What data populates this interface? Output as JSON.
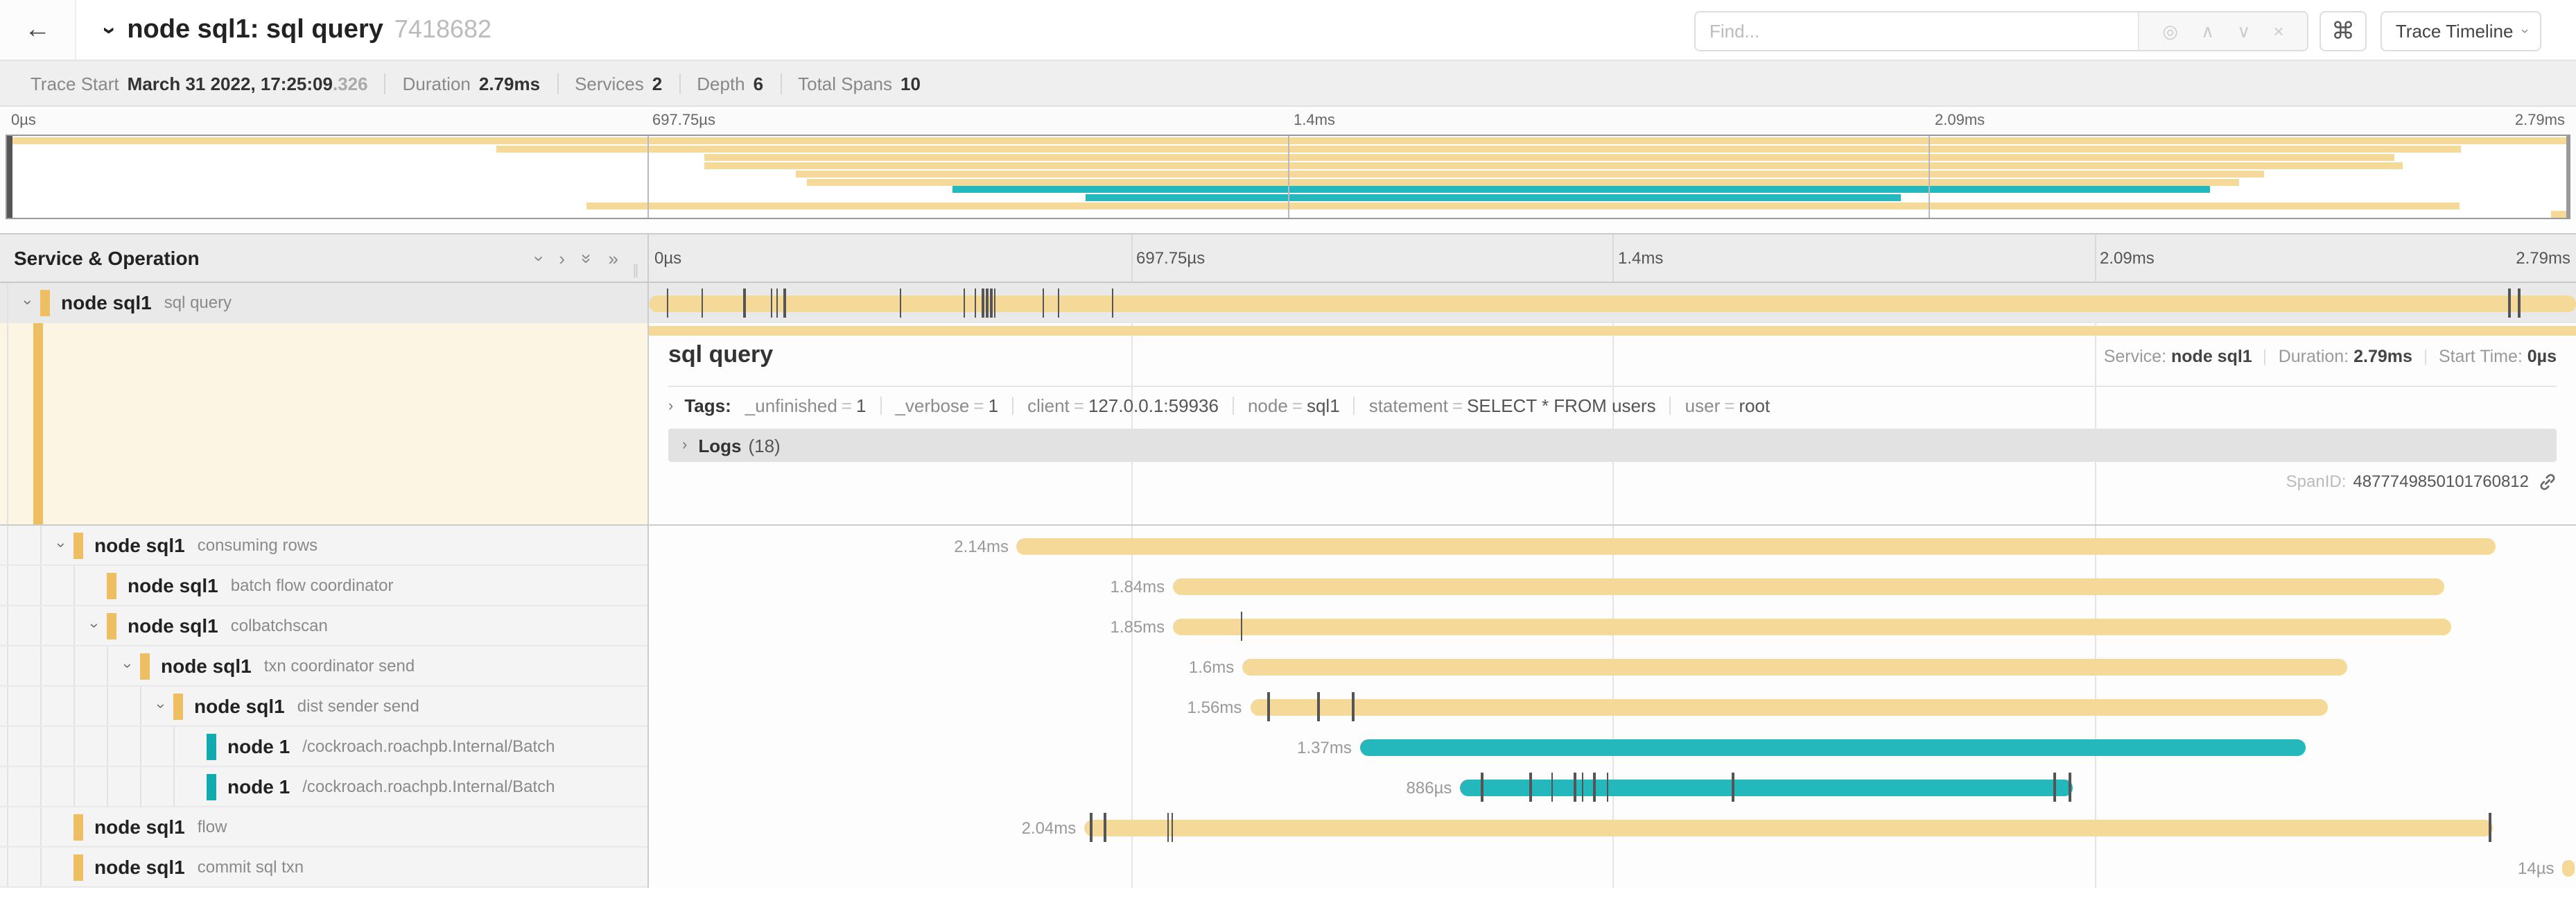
{
  "header": {
    "back_icon": "back-arrow",
    "title": "node sql1: sql query",
    "trace_id_short": "7418682",
    "find_placeholder": "Find...",
    "shortcut_icon": "⌘",
    "view_selector": "Trace Timeline"
  },
  "trace_info": {
    "items": [
      {
        "label": "Trace Start",
        "value": "March 31 2022, 17:25:09",
        "suffix": ".326"
      },
      {
        "label": "Duration",
        "value": "2.79ms"
      },
      {
        "label": "Services",
        "value": "2"
      },
      {
        "label": "Depth",
        "value": "6"
      },
      {
        "label": "Total Spans",
        "value": "10"
      }
    ]
  },
  "timeline": {
    "ticks": [
      {
        "label": "0µs",
        "pos": 0
      },
      {
        "label": "697.75µs",
        "pos": 25
      },
      {
        "label": "1.4ms",
        "pos": 50
      },
      {
        "label": "2.09ms",
        "pos": 75
      },
      {
        "label": "2.79ms",
        "pos": 100
      }
    ]
  },
  "colors": {
    "tan": "#F5D999",
    "tan_chip": "#EDBE62",
    "teal": "#24B8BD",
    "teal_chip": "#12A9AF",
    "selected_row": "#e9e9e9",
    "detail_tint": "#fcf5e4"
  },
  "panel": {
    "left_header": "Service & Operation"
  },
  "spans": {
    "rows": [
      {
        "service": "node sql1",
        "operation": "sql query",
        "depth": 0,
        "expandable": true,
        "color": "tan",
        "start": 0,
        "end": 100,
        "duration_label": "",
        "ticks": [
          0.9,
          2.7,
          4.9,
          6.3,
          6.6,
          7.0,
          13.0,
          16.3,
          16.9,
          17.3,
          17.5,
          17.7,
          17.9,
          20.4,
          21.2,
          24.0,
          96.5,
          97.0
        ]
      },
      {
        "service": "node sql1",
        "operation": "consuming rows",
        "depth": 1,
        "expandable": true,
        "color": "tan",
        "start": 19.1,
        "end": 95.8,
        "duration_label": "2.14ms",
        "ticks": []
      },
      {
        "service": "node sql1",
        "operation": "batch flow coordinator",
        "depth": 2,
        "expandable": false,
        "color": "tan",
        "start": 27.2,
        "end": 93.2,
        "duration_label": "1.84ms",
        "ticks": []
      },
      {
        "service": "node sql1",
        "operation": "colbatchscan",
        "depth": 2,
        "expandable": true,
        "color": "tan",
        "start": 27.2,
        "end": 93.5,
        "duration_label": "1.85ms",
        "ticks": [
          30.7
        ]
      },
      {
        "service": "node sql1",
        "operation": "txn coordinator send",
        "depth": 3,
        "expandable": true,
        "color": "tan",
        "start": 30.8,
        "end": 88.1,
        "duration_label": "1.6ms",
        "ticks": []
      },
      {
        "service": "node sql1",
        "operation": "dist sender send",
        "depth": 4,
        "expandable": true,
        "color": "tan",
        "start": 31.2,
        "end": 87.1,
        "duration_label": "1.56ms",
        "ticks": [
          32.1,
          34.7,
          36.5
        ]
      },
      {
        "service": "node 1",
        "operation": "/cockroach.roachpb.Internal/Batch",
        "depth": 5,
        "expandable": false,
        "color": "teal",
        "start": 36.9,
        "end": 86.0,
        "duration_label": "1.37ms",
        "ticks": []
      },
      {
        "service": "node 1",
        "operation": "/cockroach.roachpb.Internal/Batch",
        "depth": 5,
        "expandable": false,
        "color": "teal",
        "start": 42.1,
        "end": 73.9,
        "duration_label": "886µs",
        "ticks": [
          43.2,
          45.7,
          46.8,
          48.0,
          48.4,
          49.0,
          49.7,
          56.2,
          72.9,
          73.7
        ]
      },
      {
        "service": "node sql1",
        "operation": "flow",
        "depth": 1,
        "expandable": false,
        "color": "tan",
        "start": 22.6,
        "end": 95.7,
        "duration_label": "2.04ms",
        "ticks": [
          22.9,
          23.6,
          26.9,
          27.1,
          95.5
        ]
      },
      {
        "service": "node sql1",
        "operation": "commit sql txn",
        "depth": 1,
        "expandable": false,
        "color": "tan",
        "start": 99.3,
        "end": 99.9,
        "duration_label": "14µs",
        "ticks": []
      }
    ]
  },
  "detail": {
    "title": "sql query",
    "service_label": "Service:",
    "service": "node sql1",
    "duration_label": "Duration:",
    "duration": "2.79ms",
    "start_label": "Start Time:",
    "start": "0µs",
    "tags_label": "Tags:",
    "tags": [
      {
        "key": "_unfinished",
        "value": "1"
      },
      {
        "key": "_verbose",
        "value": "1"
      },
      {
        "key": "client",
        "value": "127.0.0.1:59936"
      },
      {
        "key": "node",
        "value": "sql1"
      },
      {
        "key": "statement",
        "value": "SELECT * FROM users"
      },
      {
        "key": "user",
        "value": "root"
      }
    ],
    "logs_label": "Logs",
    "logs_count": "(18)",
    "span_id_label": "SpanID:",
    "span_id": "4877749850101760812"
  }
}
